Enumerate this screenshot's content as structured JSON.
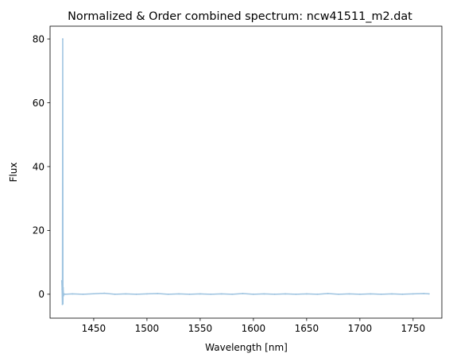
{
  "chart_data": {
    "type": "line",
    "title": "Normalized & Order combined spectrum: ncw41511_m2.dat",
    "xlabel": "Wavelength [nm]",
    "ylabel": "Flux",
    "xlim": [
      1409,
      1777
    ],
    "ylim": [
      -7.5,
      84
    ],
    "x_ticks": [
      1450,
      1500,
      1550,
      1600,
      1650,
      1700,
      1750
    ],
    "x_tick_labels": [
      "1450",
      "1500",
      "1550",
      "1600",
      "1650",
      "1700",
      "1750"
    ],
    "y_ticks": [
      0,
      20,
      40,
      60,
      80
    ],
    "y_tick_labels": [
      "0",
      "20",
      "40",
      "60",
      "80"
    ],
    "grid": false,
    "legend": "none",
    "series": [
      {
        "color": "#9dc3e0",
        "x": [
          1420.0,
          1420.3,
          1420.6,
          1420.9,
          1421.1,
          1421.3,
          1421.6,
          1422.0,
          1423,
          1430,
          1440,
          1450,
          1460,
          1470,
          1480,
          1490,
          1500,
          1510,
          1520,
          1530,
          1540,
          1550,
          1560,
          1570,
          1580,
          1590,
          1600,
          1610,
          1620,
          1630,
          1640,
          1650,
          1660,
          1670,
          1680,
          1690,
          1700,
          1710,
          1720,
          1730,
          1740,
          1750,
          1760,
          1765
        ],
        "y": [
          4.2,
          1.5,
          -3.2,
          80,
          -3.0,
          2.0,
          -0.5,
          0.1,
          0,
          0.1,
          0,
          0.15,
          0.3,
          0,
          0.1,
          0,
          0.1,
          0.2,
          0,
          0.1,
          0,
          0.1,
          0,
          0.1,
          0,
          0.2,
          0,
          0.1,
          0,
          0.1,
          0,
          0.1,
          0,
          0.2,
          0,
          0.1,
          0,
          0.1,
          0,
          0.1,
          0,
          0.1,
          0.2,
          0.1
        ]
      }
    ]
  }
}
